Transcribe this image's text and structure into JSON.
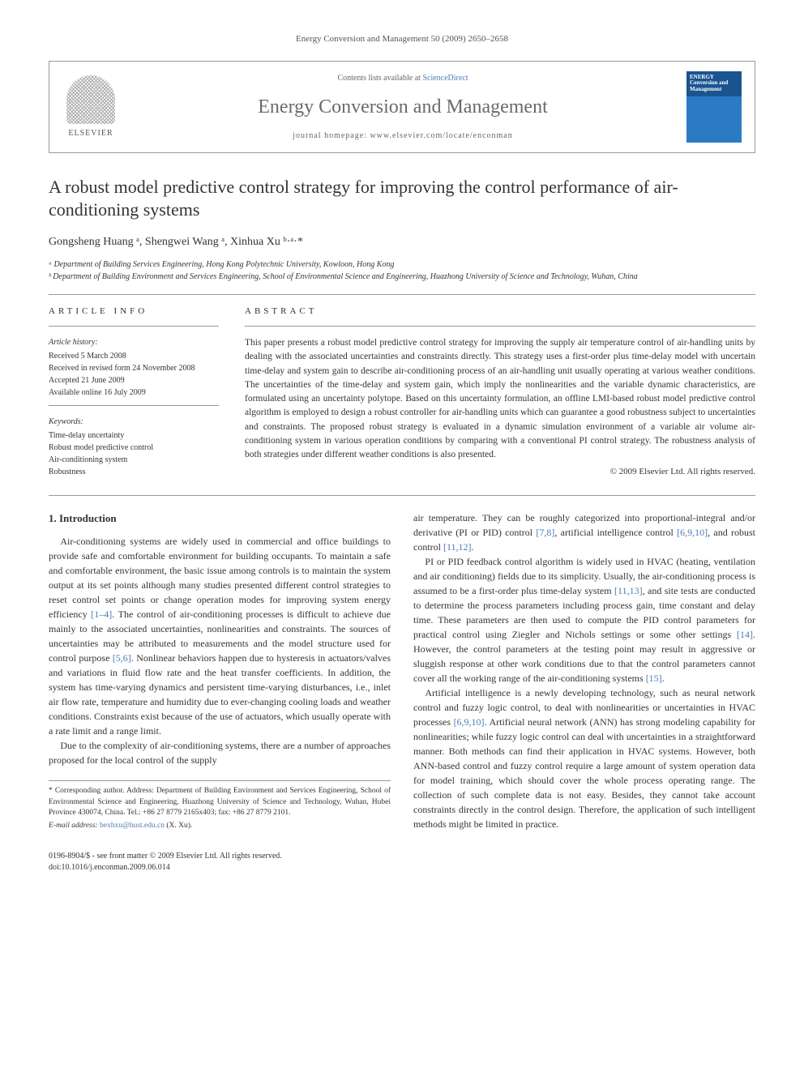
{
  "header": {
    "citation": "Energy Conversion and Management 50 (2009) 2650–2658"
  },
  "journalBox": {
    "publisher": "ELSEVIER",
    "contentsPrefix": "Contents lists available at ",
    "contentsLink": "ScienceDirect",
    "journalName": "Energy Conversion and Management",
    "homepagePrefix": "journal homepage: ",
    "homepageUrl": "www.elsevier.com/locate/enconman",
    "coverTitle": "ENERGY Conversion and Management"
  },
  "article": {
    "title": "A robust model predictive control strategy for improving the control performance of air-conditioning systems",
    "authors": "Gongsheng Huang ᵃ, Shengwei Wang ᵃ, Xinhua Xu ᵇ·ᵃ·*",
    "affA": "ᵃ Department of Building Services Engineering, Hong Kong Polytechnic University, Kowloon, Hong Kong",
    "affB": "ᵇ Department of Building Environment and Services Engineering, School of Environmental Science and Engineering, Huazhong University of Science and Technology, Wuhan, China"
  },
  "info": {
    "heading": "ARTICLE INFO",
    "historyHead": "Article history:",
    "h1": "Received 5 March 2008",
    "h2": "Received in revised form 24 November 2008",
    "h3": "Accepted 21 June 2009",
    "h4": "Available online 16 July 2009",
    "keywordsHead": "Keywords:",
    "k1": "Time-delay uncertainty",
    "k2": "Robust model predictive control",
    "k3": "Air-conditioning system",
    "k4": "Robustness"
  },
  "abstract": {
    "heading": "ABSTRACT",
    "text": "This paper presents a robust model predictive control strategy for improving the supply air temperature control of air-handling units by dealing with the associated uncertainties and constraints directly. This strategy uses a first-order plus time-delay model with uncertain time-delay and system gain to describe air-conditioning process of an air-handling unit usually operating at various weather conditions. The uncertainties of the time-delay and system gain, which imply the nonlinearities and the variable dynamic characteristics, are formulated using an uncertainty polytope. Based on this uncertainty formulation, an offline LMI-based robust model predictive control algorithm is employed to design a robust controller for air-handling units which can guarantee a good robustness subject to uncertainties and constraints. The proposed robust strategy is evaluated in a dynamic simulation environment of a variable air volume air-conditioning system in various operation conditions by comparing with a conventional PI control strategy. The robustness analysis of both strategies under different weather conditions is also presented.",
    "copyright": "© 2009 Elsevier Ltd. All rights reserved."
  },
  "body": {
    "introHeading": "1. Introduction",
    "p1": "Air-conditioning systems are widely used in commercial and office buildings to provide safe and comfortable environment for building occupants. To maintain a safe and comfortable environment, the basic issue among controls is to maintain the system output at its set points although many studies presented different control strategies to reset control set points or change operation modes for improving system energy efficiency ",
    "c1": "[1–4]",
    "p1b": ". The control of air-conditioning processes is difficult to achieve due mainly to the associated uncertainties, nonlinearities and constraints. The sources of uncertainties may be attributed to measurements and the model structure used for control purpose ",
    "c2": "[5,6]",
    "p1c": ". Nonlinear behaviors happen due to hysteresis in actuators/valves and variations in fluid flow rate and the heat transfer coefficients. In addition, the system has time-varying dynamics and persistent time-varying disturbances, i.e., inlet air flow rate, temperature and humidity due to ever-changing cooling loads and weather conditions. Constraints exist because of the use of actuators, which usually operate with a rate limit and a range limit.",
    "p2": "Due to the complexity of air-conditioning systems, there are a number of approaches proposed for the local control of the supply",
    "p3a": "air temperature. They can be roughly categorized into proportional-integral and/or derivative (PI or PID) control ",
    "c3": "[7,8]",
    "p3b": ", artificial intelligence control ",
    "c4": "[6,9,10]",
    "p3c": ", and robust control ",
    "c5": "[11,12]",
    "p3d": ".",
    "p4a": "PI or PID feedback control algorithm is widely used in HVAC (heating, ventilation and air conditioning) fields due to its simplicity. Usually, the air-conditioning process is assumed to be a first-order plus time-delay system ",
    "c6": "[11,13]",
    "p4b": ", and site tests are conducted to determine the process parameters including process gain, time constant and delay time. These parameters are then used to compute the PID control parameters for practical control using Ziegler and Nichols settings or some other settings ",
    "c7": "[14]",
    "p4c": ". However, the control parameters at the testing point may result in aggressive or sluggish response at other work conditions due to that the control parameters cannot cover all the working range of the air-conditioning systems ",
    "c8": "[15]",
    "p4d": ".",
    "p5a": "Artificial intelligence is a newly developing technology, such as neural network control and fuzzy logic control, to deal with nonlinearities or uncertainties in HVAC processes ",
    "c9": "[6,9,10]",
    "p5b": ". Artificial neural network (ANN) has strong modeling capability for nonlinearities; while fuzzy logic control can deal with uncertainties in a straightforward manner. Both methods can find their application in HVAC systems. However, both ANN-based control and fuzzy control require a large amount of system operation data for model training, which should cover the whole process operating range. The collection of such complete data is not easy. Besides, they cannot take account constraints directly in the control design. Therefore, the application of such intelligent methods might be limited in practice."
  },
  "footnote": {
    "corr": "* Corresponding author. Address: Department of Building Environment and Services Engineering, School of Environmental Science and Engineering, Huazhong University of Science and Technology, Wuhan, Hubei Province 430074, China. Tel.: +86 27 8779 2165x403; fax: +86 27 8779 2101.",
    "emailLabel": "E-mail address: ",
    "email": "bexhxu@hust.edu.cn",
    "emailSuffix": " (X. Xu)."
  },
  "footer": {
    "line1": "0196-8904/$ - see front matter © 2009 Elsevier Ltd. All rights reserved.",
    "line2": "doi:10.1016/j.enconman.2009.06.014"
  },
  "colors": {
    "link": "#4a7db5",
    "text": "#333333",
    "rule": "#999999",
    "coverTop": "#1a5490",
    "coverBottom": "#2b7bc4"
  }
}
